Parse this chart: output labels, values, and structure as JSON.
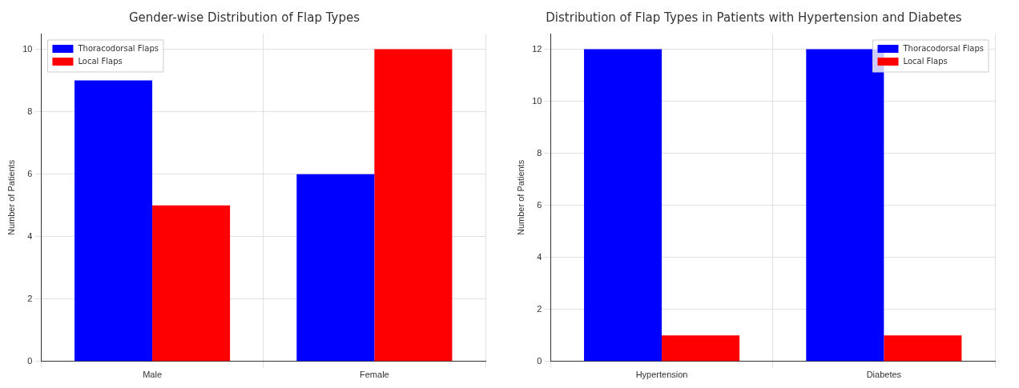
{
  "chart_data": [
    {
      "type": "bar",
      "title": "Gender-wise Distribution of Flap Types",
      "ylabel": "Number of Patients",
      "categories": [
        "Male",
        "Female"
      ],
      "series": [
        {
          "name": "Thoracodorsal Flaps",
          "color": "#0000ff",
          "values": [
            9,
            6
          ]
        },
        {
          "name": "Local Flaps",
          "color": "#ff0000",
          "values": [
            5,
            10
          ]
        }
      ],
      "ylim": [
        0,
        10.5
      ],
      "yticks": [
        0,
        2,
        4,
        6,
        8,
        10
      ],
      "grid": true,
      "legend": "top left"
    },
    {
      "type": "bar",
      "title": "Distribution of Flap Types in Patients with Hypertension and Diabetes",
      "ylabel": "Number of Patients",
      "categories": [
        "Hypertension",
        "Diabetes"
      ],
      "series": [
        {
          "name": "Thoracodorsal Flaps",
          "color": "#0000ff",
          "values": [
            12,
            12
          ]
        },
        {
          "name": "Local Flaps",
          "color": "#ff0000",
          "values": [
            1,
            1
          ]
        }
      ],
      "ylim": [
        0,
        12.6
      ],
      "yticks": [
        0,
        2,
        4,
        6,
        8,
        10,
        12
      ],
      "grid": true,
      "legend": "top right"
    }
  ]
}
